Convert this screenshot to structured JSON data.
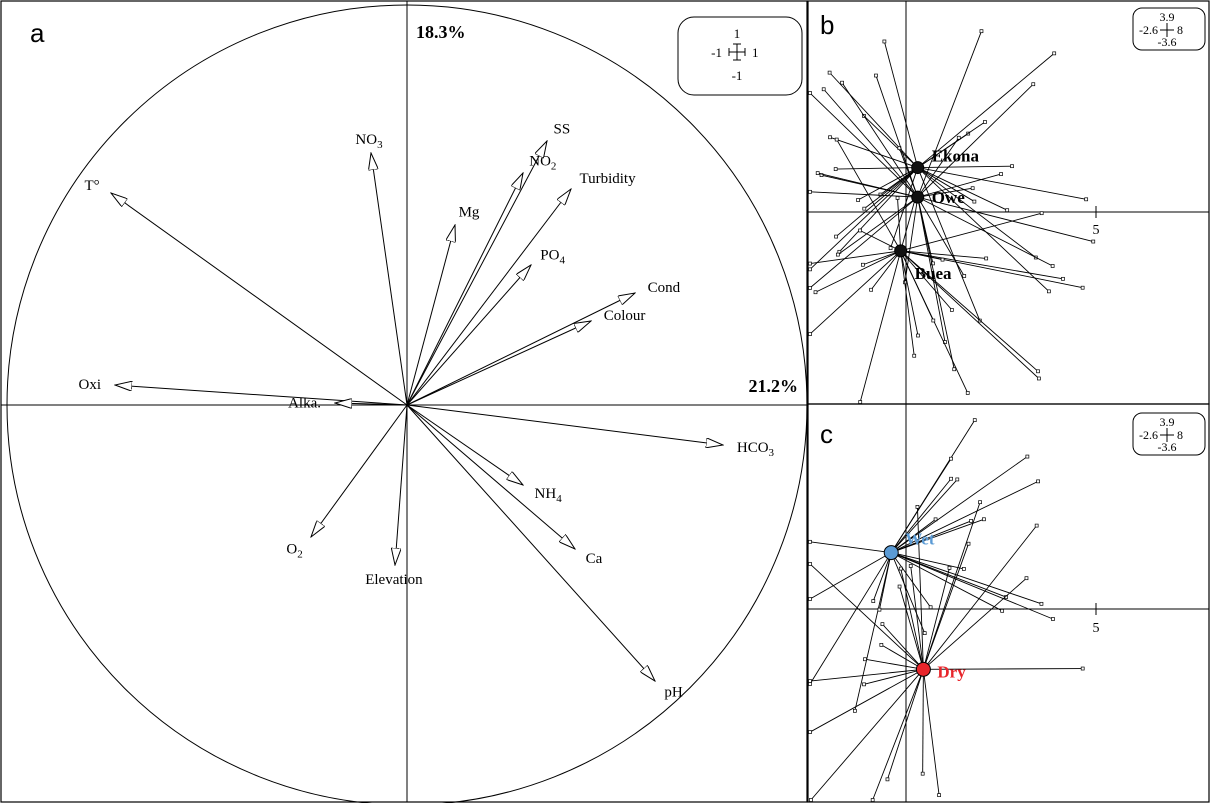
{
  "chart_data": [
    {
      "panel": "a",
      "type": "scatter",
      "subtype": "pca-correlation-circle",
      "axis1_variance": "21.2%",
      "axis2_variance": "18.3%",
      "xlim": [
        -1,
        1
      ],
      "ylim": [
        -1,
        1
      ],
      "scale_box": {
        "top": "1",
        "bottom": "-1",
        "left": "-1",
        "right": "1"
      },
      "variables": [
        {
          "name": "T°",
          "sub": "",
          "x": -0.74,
          "y": 0.53
        },
        {
          "name": "NO",
          "sub": "3",
          "x": -0.09,
          "y": 0.63
        },
        {
          "name": "Mg",
          "sub": "",
          "x": 0.12,
          "y": 0.45
        },
        {
          "name": "NO",
          "sub": "2",
          "x": 0.29,
          "y": 0.58
        },
        {
          "name": "SS",
          "sub": "",
          "x": 0.35,
          "y": 0.66
        },
        {
          "name": "Turbidity",
          "sub": "",
          "x": 0.41,
          "y": 0.54
        },
        {
          "name": "PO",
          "sub": "4",
          "x": 0.31,
          "y": 0.35
        },
        {
          "name": "Cond",
          "sub": "",
          "x": 0.57,
          "y": 0.28
        },
        {
          "name": "Colour",
          "sub": "",
          "x": 0.46,
          "y": 0.21
        },
        {
          "name": "Oxi",
          "sub": "",
          "x": -0.73,
          "y": 0.05
        },
        {
          "name": "Alka.",
          "sub": "",
          "x": -0.18,
          "y": 0.005
        },
        {
          "name": "HCO",
          "sub": "3",
          "x": 0.79,
          "y": -0.1
        },
        {
          "name": "NH",
          "sub": "4",
          "x": 0.29,
          "y": -0.2
        },
        {
          "name": "Ca",
          "sub": "",
          "x": 0.42,
          "y": -0.36
        },
        {
          "name": "pH",
          "sub": "",
          "x": 0.62,
          "y": -0.69
        },
        {
          "name": "O",
          "sub": "2",
          "x": -0.24,
          "y": -0.33
        },
        {
          "name": "Elevation",
          "sub": "",
          "x": -0.03,
          "y": -0.4
        }
      ]
    },
    {
      "panel": "b",
      "type": "scatter",
      "subtype": "class-centroids-by-site",
      "xlim": [
        -2.6,
        8
      ],
      "ylim": [
        -3.6,
        3.9
      ],
      "scale_box": {
        "top": "3.9",
        "bottom": "-3.6",
        "left": "-2.6",
        "right": "8"
      },
      "x_tick": "5",
      "groups": [
        {
          "name": "Ekona",
          "x": 0.3,
          "y": 0.8
        },
        {
          "name": "Owe",
          "x": 0.3,
          "y": 0.25
        },
        {
          "name": "Buea",
          "x": -0.15,
          "y": -0.75
        }
      ]
    },
    {
      "panel": "c",
      "type": "scatter",
      "subtype": "class-centroids-by-season",
      "xlim": [
        -2.6,
        8
      ],
      "ylim": [
        -3.6,
        3.9
      ],
      "scale_box": {
        "top": "3.9",
        "bottom": "-3.6",
        "left": "-2.6",
        "right": "8"
      },
      "x_tick": "5",
      "groups": [
        {
          "name": "Wet",
          "x": -0.4,
          "y": 1.1,
          "color": "#5b9bd5"
        },
        {
          "name": "Dry",
          "x": 0.45,
          "y": -1.1,
          "color": "#e8252b"
        }
      ]
    }
  ],
  "colors": {
    "wet": "#5b9bd5",
    "dry": "#e8252b",
    "ink": "#000000"
  }
}
